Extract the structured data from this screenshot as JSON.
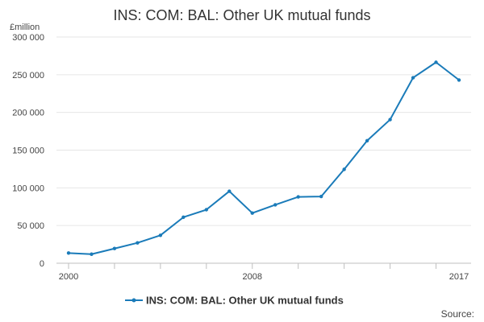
{
  "chart_data": {
    "type": "line",
    "title": "INS: COM: BAL: Other UK mutual funds",
    "ylabel": "£million",
    "xlabel": "",
    "x": [
      2000,
      2001,
      2002,
      2003,
      2004,
      2005,
      2006,
      2007,
      2008,
      2009,
      2010,
      2011,
      2012,
      2013,
      2014,
      2015,
      2016,
      2017
    ],
    "x_tick_labels": [
      "2000",
      "2008",
      "2017"
    ],
    "y_tick_labels": [
      "0",
      "50 000",
      "100 000",
      "150 000",
      "200 000",
      "250 000",
      "300 000"
    ],
    "y_ticks": [
      0,
      50000,
      100000,
      150000,
      200000,
      250000,
      300000
    ],
    "xlim": [
      2000,
      2017
    ],
    "ylim": [
      0,
      300000
    ],
    "grid": true,
    "legend_position": "bottom-center",
    "series": [
      {
        "name": "INS: COM: BAL: Other UK mutual funds",
        "color": "#1a7bb9",
        "values": [
          13500,
          12000,
          19500,
          27000,
          37000,
          61000,
          71000,
          95500,
          66500,
          77500,
          88000,
          88500,
          124500,
          162500,
          190500,
          246000,
          266500,
          243000
        ]
      }
    ],
    "source_label": "Source:"
  }
}
